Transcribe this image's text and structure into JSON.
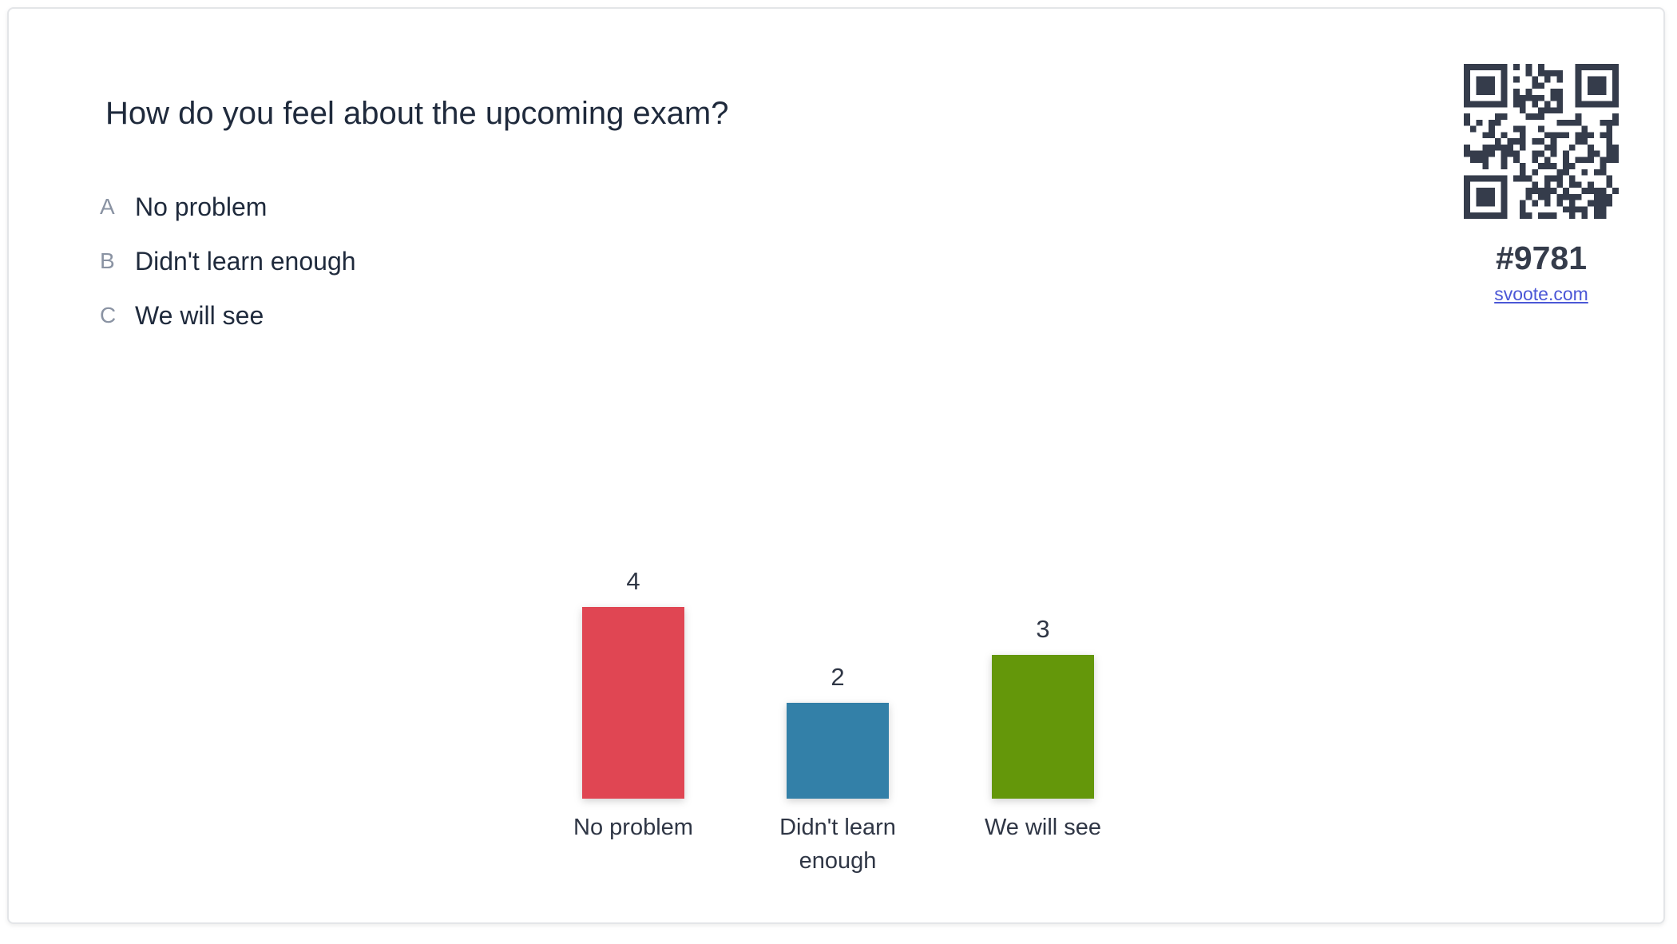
{
  "question": "How do you feel about the upcoming exam?",
  "options": [
    {
      "letter": "A",
      "text": "No problem"
    },
    {
      "letter": "B",
      "text": "Didn't learn enough"
    },
    {
      "letter": "C",
      "text": "We will see"
    }
  ],
  "side_panel": {
    "code": "#9781",
    "link": "svoote.com",
    "qr_icon": "qr-code-icon"
  },
  "colors": {
    "text": "#1f2a3c",
    "letter": "#8a93a3",
    "qr": "#353c4b",
    "link": "#4b57d6"
  },
  "chart_data": {
    "type": "bar",
    "categories": [
      [
        "No problem"
      ],
      [
        "Didn't learn",
        "enough"
      ],
      [
        "We will see"
      ]
    ],
    "values": [
      4,
      2,
      3
    ],
    "colors": [
      "#e04653",
      "#3380a8",
      "#64970a"
    ],
    "title": "",
    "xlabel": "",
    "ylabel": "",
    "ylim": [
      0,
      4
    ],
    "grid": false
  }
}
